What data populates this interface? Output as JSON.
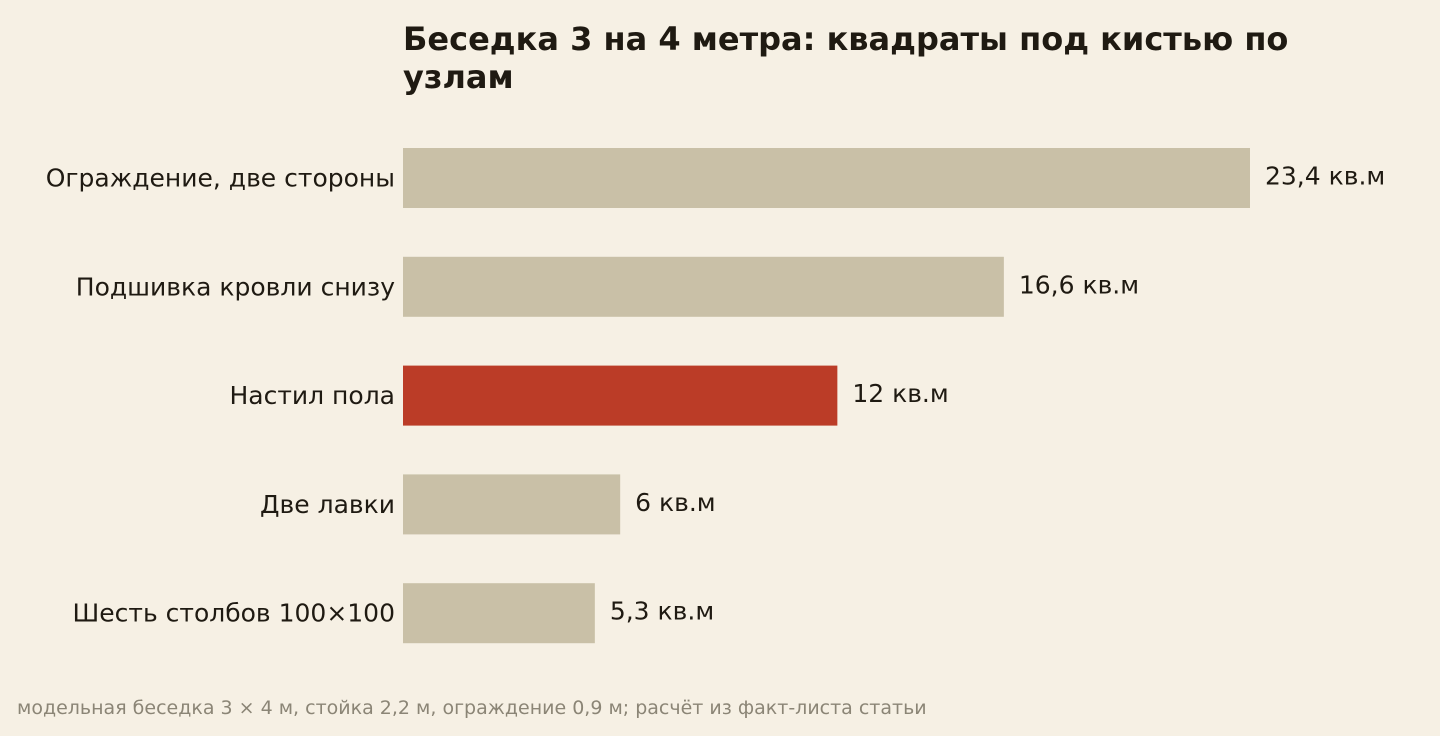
{
  "colors": {
    "background": "#f6f0e4",
    "bar": "#c9c0a7",
    "highlight": "#bb3c27",
    "text": "#1f1a12",
    "footer": "#8b8576"
  },
  "chart_data": {
    "type": "bar",
    "orientation": "horizontal",
    "title": "Беседка 3 на 4 метра: квадраты под кистью по узлам",
    "footer": "модельная беседка 3 × 4 м, стойка 2,2 м, ограждение 0,9 м; расчёт из факт-листа статьи",
    "categories": [
      "Ограждение, две стороны",
      "Подшивка кровли снизу",
      "Настил пола",
      "Две лавки",
      "Шесть столбов 100×100"
    ],
    "values": [
      23.4,
      16.6,
      12,
      6,
      5.3
    ],
    "value_labels": [
      "23,4 кв.м",
      "16,6 кв.м",
      "12 кв.м",
      "6 кв.м",
      "5,3 кв.м"
    ],
    "highlighted_category": "Настил пола",
    "xlim": [
      0,
      23.4
    ],
    "grid": false,
    "legend": false
  }
}
